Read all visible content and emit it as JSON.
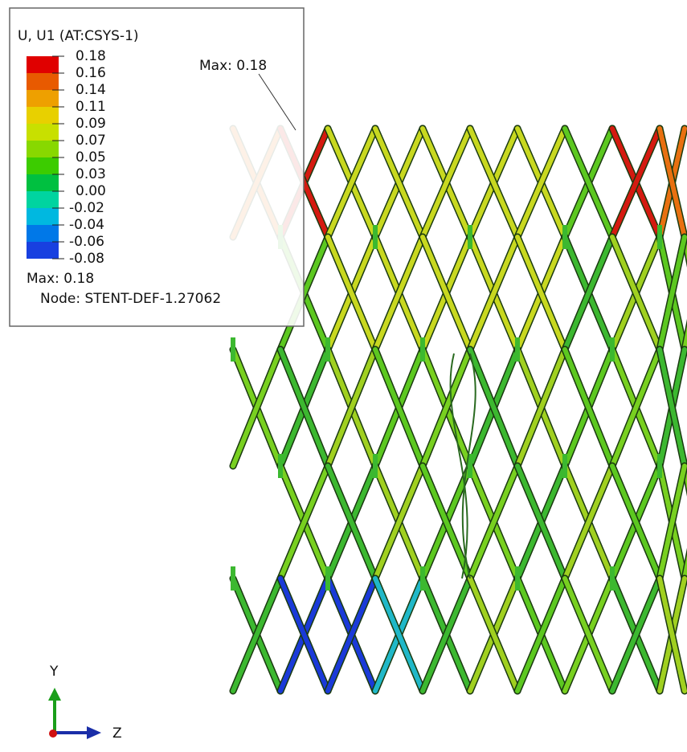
{
  "legend": {
    "title": "U, U1 (AT:CSYS-1)",
    "levels": [
      {
        "label": "0.18",
        "color": "#e00000"
      },
      {
        "label": "0.16",
        "color": "#e85a00"
      },
      {
        "label": "0.14",
        "color": "#eea000"
      },
      {
        "label": "0.11",
        "color": "#e8d000"
      },
      {
        "label": "0.09",
        "color": "#c8e000"
      },
      {
        "label": "0.07",
        "color": "#88d800"
      },
      {
        "label": "0.05",
        "color": "#3ccc00"
      },
      {
        "label": "0.03",
        "color": "#00c040"
      },
      {
        "label": "0.00",
        "color": "#00d4a0"
      },
      {
        "label": "-0.02",
        "color": "#00b8e0"
      },
      {
        "label": "-0.04",
        "color": "#0078e8"
      },
      {
        "label": "-0.06",
        "color": "#1840e0"
      },
      {
        "label": "-0.08",
        "color": "#0000d0"
      }
    ],
    "max": "Max: 0.18",
    "node": "Node: STENT-DEF-1.27062"
  },
  "annotation": "Max: 0.18",
  "triad": {
    "y": "Y",
    "z": "Z"
  }
}
